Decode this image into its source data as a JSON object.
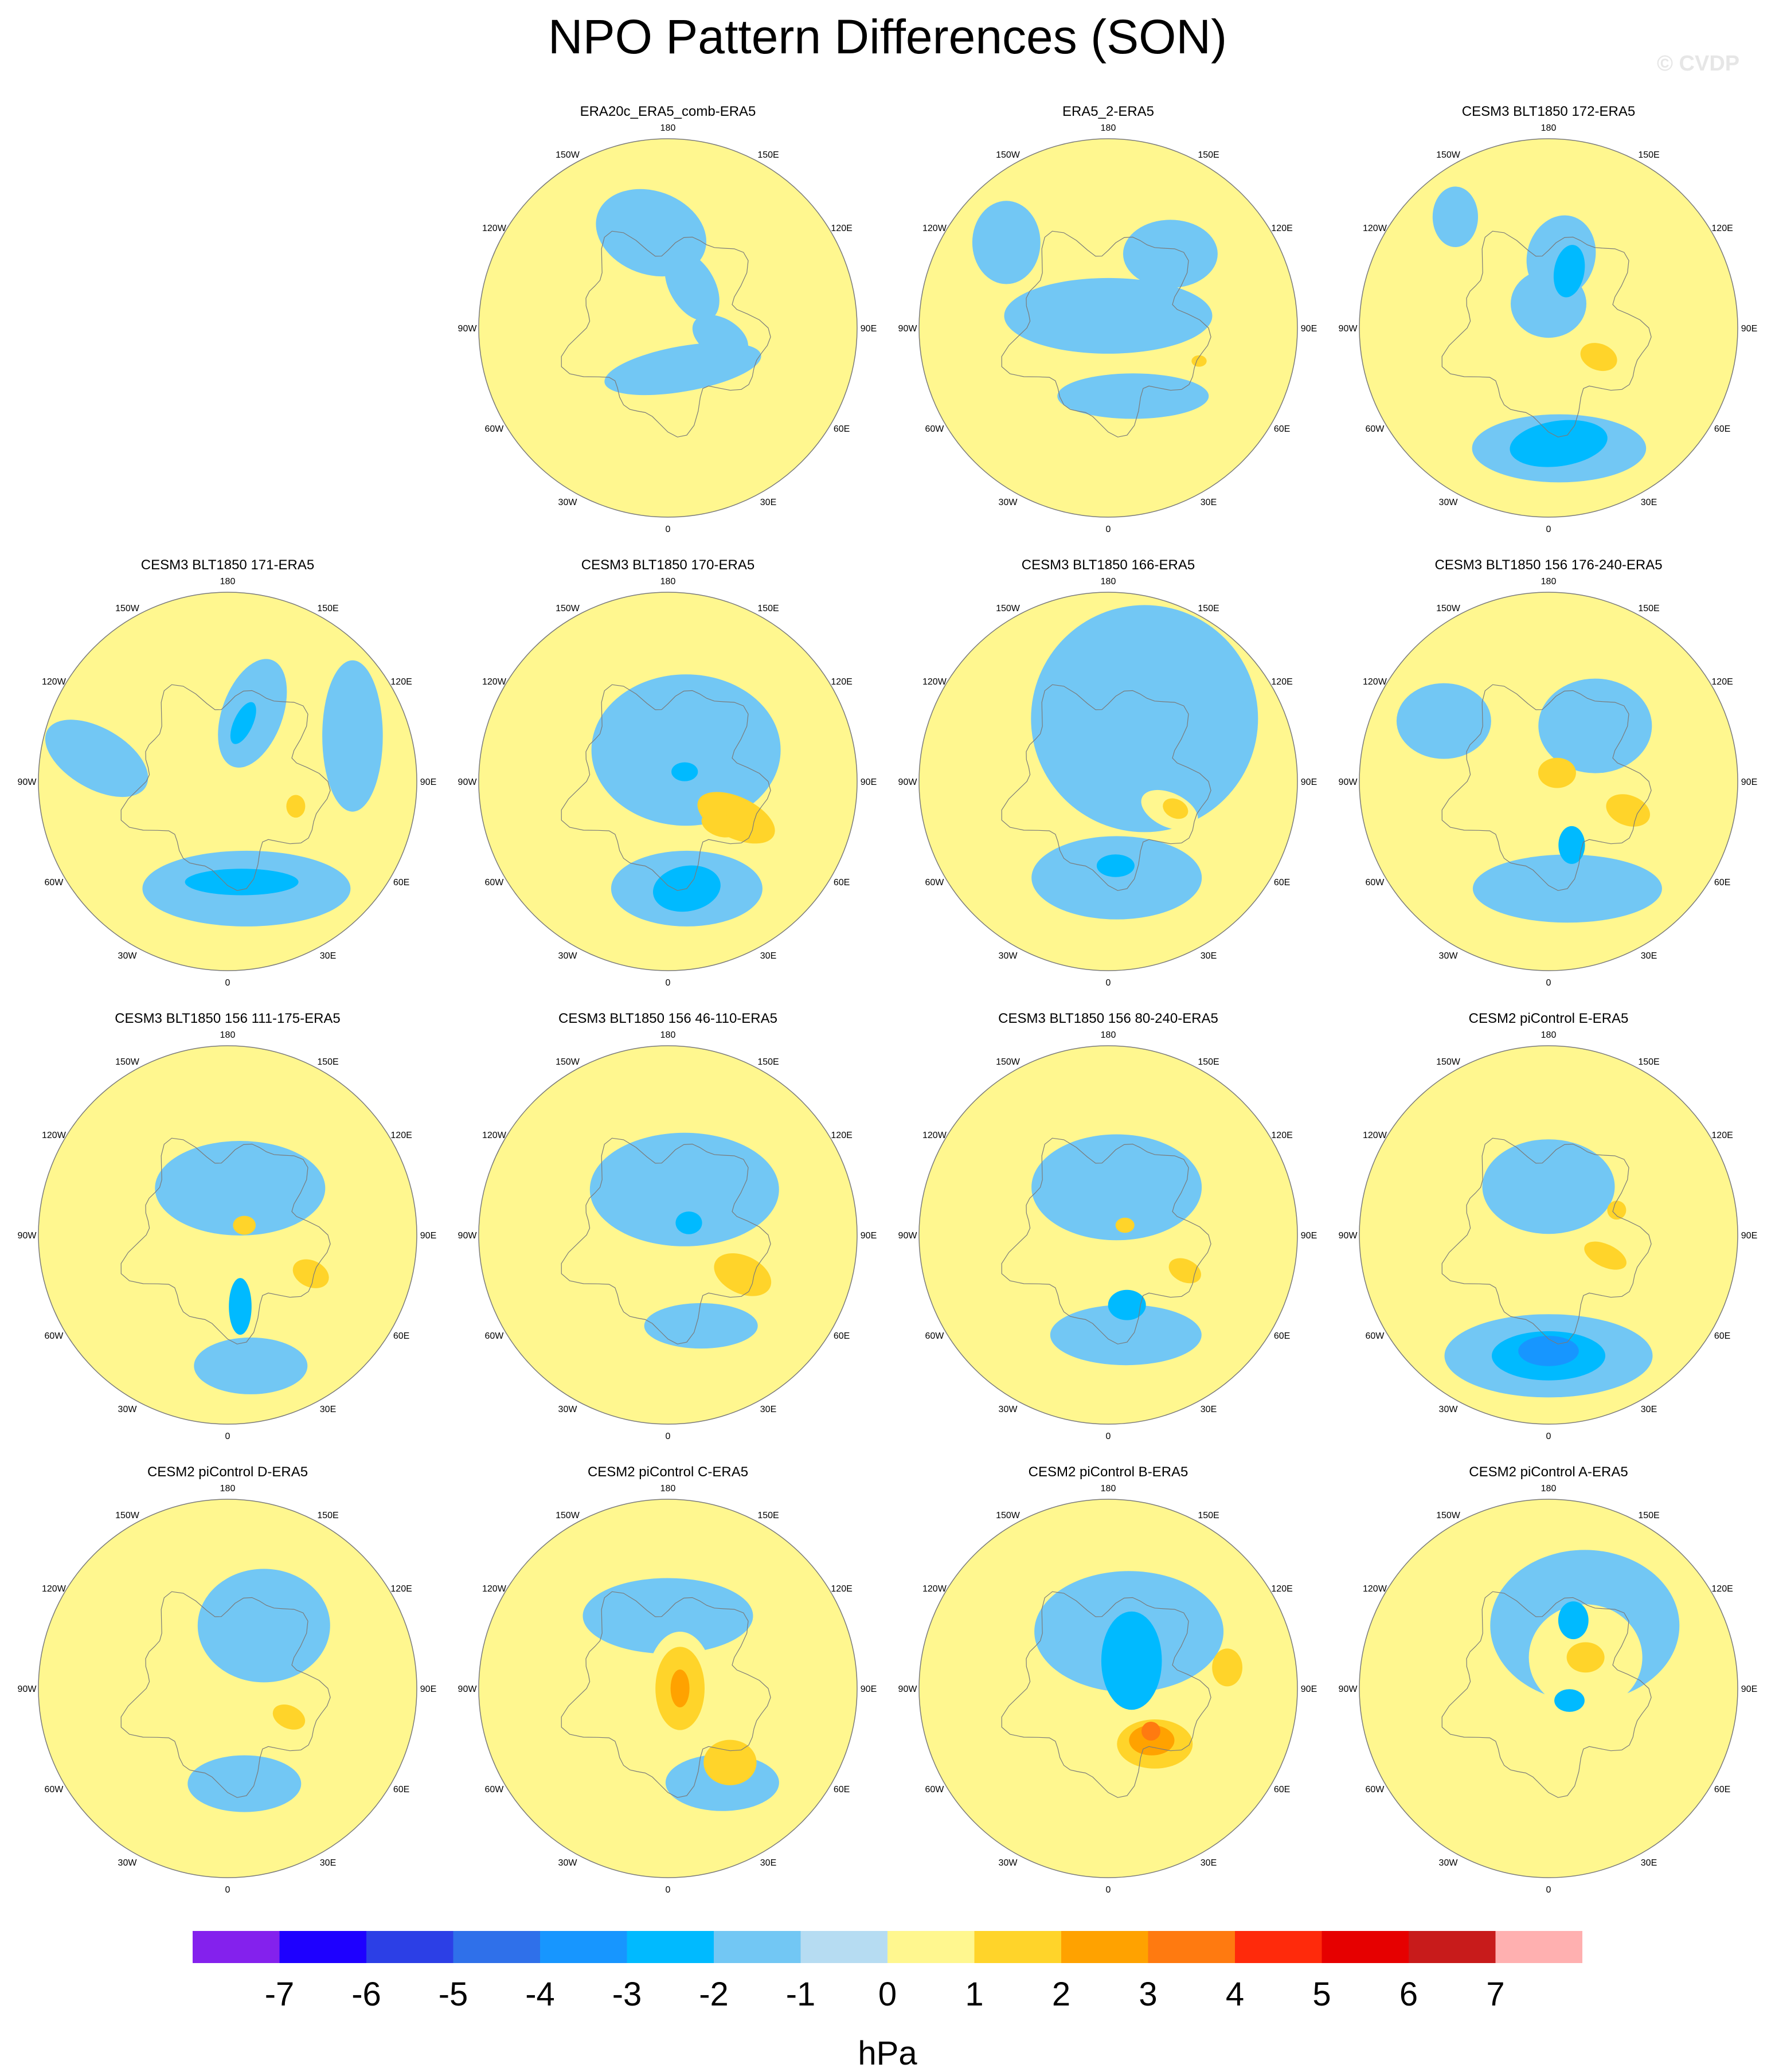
{
  "title": "NPO Pattern Differences (SON)",
  "watermark": "© CVDP",
  "longitude_labels": {
    "n180": "180",
    "n150e": "150E",
    "n120e": "120E",
    "n90e": "90E",
    "n60e": "60E",
    "n30e": "30E",
    "n0": "0",
    "n30w": "30W",
    "n60w": "60W",
    "n90w": "90W",
    "n120w": "120W",
    "n150w": "150W"
  },
  "colors": {
    "ocean_neg1": "#b6dcf2",
    "land_pos1": "#fff78f",
    "coast": "#7a7a7a",
    "outline": "#7a7a7a"
  },
  "chart_data": {
    "type": "heatmap",
    "projection": "north-polar-stereographic",
    "variable_units": "hPa",
    "colorbar": {
      "levels": [
        -7,
        -6,
        -5,
        -4,
        -3,
        -2,
        -1,
        0,
        1,
        2,
        3,
        4,
        5,
        6,
        7
      ],
      "tick_labels": [
        "-7",
        "-6",
        "-5",
        "-4",
        "-3",
        "-2",
        "-1",
        "0",
        "1",
        "2",
        "3",
        "4",
        "5",
        "6",
        "7"
      ],
      "colors": [
        "#8421ed",
        "#1e00ff",
        "#2c3fe6",
        "#2f70ea",
        "#1796ff",
        "#00baff",
        "#72c7f4",
        "#b6dcf2",
        "#fff78f",
        "#ffd42a",
        "#ffa200",
        "#ff7a10",
        "#ff2a0b",
        "#e60000",
        "#c81b1b",
        "#ffb0b0"
      ],
      "units_label": "hPa"
    },
    "panels": [
      {
        "title": "ERA20c_ERA5_comb-ERA5",
        "features": [
          {
            "lon": 160,
            "lat": 72,
            "rx": 0.42,
            "ry": 0.12,
            "rot": -10,
            "level": -1
          },
          {
            "lon": 100,
            "lat": 68,
            "rx": 0.16,
            "ry": 0.1,
            "rot": 30,
            "level": -1
          },
          {
            "lon": -10,
            "lat": 50,
            "rx": 0.3,
            "ry": 0.22,
            "rot": 20,
            "level": -1
          },
          {
            "lon": 30,
            "lat": 70,
            "rx": 0.12,
            "ry": 0.2,
            "rot": -30,
            "level": -1
          }
        ]
      },
      {
        "title": "ERA5_2-ERA5",
        "features": [
          {
            "lon": 0,
            "lat": 85,
            "rx": 0.55,
            "ry": 0.2,
            "rot": 0,
            "level": -1
          },
          {
            "lon": 160,
            "lat": 60,
            "rx": 0.4,
            "ry": 0.12,
            "rot": 0,
            "level": -1
          },
          {
            "lon": 40,
            "lat": 50,
            "rx": 0.25,
            "ry": 0.18,
            "rot": 0,
            "level": -1
          },
          {
            "lon": -50,
            "lat": 35,
            "rx": 0.18,
            "ry": 0.22,
            "rot": 0,
            "level": -1
          },
          {
            "lon": 110,
            "lat": 50,
            "rx": 0.04,
            "ry": 0.03,
            "rot": 0,
            "level": 2
          }
        ]
      },
      {
        "title": "CESM3 BLT1850 172-ERA5",
        "features": [
          {
            "lon": 175,
            "lat": 40,
            "rx": 0.46,
            "ry": 0.18,
            "rot": 0,
            "level": -1
          },
          {
            "lon": 175,
            "lat": 42,
            "rx": 0.26,
            "ry": 0.12,
            "rot": -8,
            "level": -2
          },
          {
            "lon": 0,
            "lat": 80,
            "rx": 0.2,
            "ry": 0.18,
            "rot": 0,
            "level": -1
          },
          {
            "lon": 10,
            "lat": 60,
            "rx": 0.18,
            "ry": 0.22,
            "rot": 15,
            "level": -1
          },
          {
            "lon": 20,
            "lat": 65,
            "rx": 0.08,
            "ry": 0.14,
            "rot": 10,
            "level": -2
          },
          {
            "lon": -40,
            "lat": 30,
            "rx": 0.12,
            "ry": 0.16,
            "rot": 0,
            "level": -1
          },
          {
            "lon": 120,
            "lat": 65,
            "rx": 0.16,
            "ry": 0.12,
            "rot": 20,
            "level": 1
          },
          {
            "lon": 120,
            "lat": 66,
            "rx": 0.1,
            "ry": 0.07,
            "rot": 20,
            "level": 2
          }
        ]
      },
      {
        "title": "CESM3 BLT1850 171-ERA5",
        "features": [
          {
            "lon": 170,
            "lat": 45,
            "rx": 0.55,
            "ry": 0.2,
            "rot": 0,
            "level": -1
          },
          {
            "lon": 172,
            "lat": 48,
            "rx": 0.3,
            "ry": 0.07,
            "rot": 0,
            "level": -2
          },
          {
            "lon": 20,
            "lat": 60,
            "rx": 0.16,
            "ry": 0.3,
            "rot": 20,
            "level": -1
          },
          {
            "lon": 15,
            "lat": 65,
            "rx": 0.05,
            "ry": 0.12,
            "rot": 25,
            "level": -2
          },
          {
            "lon": 70,
            "lat": 35,
            "rx": 0.16,
            "ry": 0.4,
            "rot": 0,
            "level": -1
          },
          {
            "lon": -80,
            "lat": 35,
            "rx": 0.3,
            "ry": 0.16,
            "rot": 30,
            "level": -1
          },
          {
            "lon": 110,
            "lat": 60,
            "rx": 0.05,
            "ry": 0.06,
            "rot": 0,
            "level": 2
          }
        ]
      },
      {
        "title": "CESM3 BLT1850 170-ERA5",
        "features": [
          {
            "lon": 30,
            "lat": 75,
            "rx": 0.5,
            "ry": 0.4,
            "rot": 0,
            "level": -1
          },
          {
            "lon": 170,
            "lat": 45,
            "rx": 0.4,
            "ry": 0.2,
            "rot": 0,
            "level": -1
          },
          {
            "lon": 170,
            "lat": 45,
            "rx": 0.18,
            "ry": 0.12,
            "rot": -10,
            "level": -2
          },
          {
            "lon": 60,
            "lat": 82,
            "rx": 0.07,
            "ry": 0.05,
            "rot": 0,
            "level": -2
          },
          {
            "lon": 118,
            "lat": 58,
            "rx": 0.22,
            "ry": 0.11,
            "rot": 25,
            "level": 2
          },
          {
            "lon": 130,
            "lat": 62,
            "rx": 0.1,
            "ry": 0.06,
            "rot": 20,
            "level": 2
          }
        ]
      },
      {
        "title": "CESM3 BLT1850 166-ERA5",
        "features": [
          {
            "lon": 30,
            "lat": 60,
            "rx": 0.6,
            "ry": 0.6,
            "rot": 0,
            "level": -1
          },
          {
            "lon": 175,
            "lat": 50,
            "rx": 0.45,
            "ry": 0.22,
            "rot": 0,
            "level": -1
          },
          {
            "lon": 175,
            "lat": 55,
            "rx": 0.1,
            "ry": 0.06,
            "rot": 0,
            "level": -2
          },
          {
            "lon": 115,
            "lat": 62,
            "rx": 0.16,
            "ry": 0.09,
            "rot": 25,
            "level": 1
          },
          {
            "lon": 112,
            "lat": 60,
            "rx": 0.07,
            "ry": 0.05,
            "rot": 25,
            "level": 2
          }
        ]
      },
      {
        "title": "CESM3 BLT1850 156 176-240-ERA5",
        "features": [
          {
            "lon": 170,
            "lat": 45,
            "rx": 0.5,
            "ry": 0.18,
            "rot": 0,
            "level": -1
          },
          {
            "lon": 40,
            "lat": 60,
            "rx": 0.3,
            "ry": 0.25,
            "rot": 0,
            "level": -1
          },
          {
            "lon": -60,
            "lat": 40,
            "rx": 0.25,
            "ry": 0.2,
            "rot": 0,
            "level": -1
          },
          {
            "lon": 160,
            "lat": 62,
            "rx": 0.07,
            "ry": 0.1,
            "rot": 0,
            "level": -2
          },
          {
            "lon": 110,
            "lat": 55,
            "rx": 0.22,
            "ry": 0.14,
            "rot": 20,
            "level": 1
          },
          {
            "lon": 110,
            "lat": 55,
            "rx": 0.12,
            "ry": 0.08,
            "rot": 20,
            "level": 2
          },
          {
            "lon": 45,
            "lat": 85,
            "rx": 0.1,
            "ry": 0.08,
            "rot": 0,
            "level": 2
          }
        ]
      },
      {
        "title": "CESM3 BLT1850 156 111-175-ERA5",
        "features": [
          {
            "lon": 15,
            "lat": 70,
            "rx": 0.45,
            "ry": 0.25,
            "rot": 0,
            "level": -1
          },
          {
            "lon": 170,
            "lat": 35,
            "rx": 0.3,
            "ry": 0.15,
            "rot": 0,
            "level": -1
          },
          {
            "lon": 170,
            "lat": 60,
            "rx": 0.06,
            "ry": 0.15,
            "rot": 0,
            "level": -2
          },
          {
            "lon": 115,
            "lat": 52,
            "rx": 0.16,
            "ry": 0.1,
            "rot": 25,
            "level": 1
          },
          {
            "lon": 115,
            "lat": 52,
            "rx": 0.1,
            "ry": 0.07,
            "rot": 25,
            "level": 2
          },
          {
            "lon": 60,
            "lat": 82,
            "rx": 0.06,
            "ry": 0.05,
            "rot": 0,
            "level": 2
          }
        ]
      },
      {
        "title": "CESM3 BLT1850 156 46-110-ERA5",
        "features": [
          {
            "lon": 20,
            "lat": 70,
            "rx": 0.5,
            "ry": 0.3,
            "rot": 0,
            "level": -1
          },
          {
            "lon": 160,
            "lat": 50,
            "rx": 0.3,
            "ry": 0.12,
            "rot": 0,
            "level": -1
          },
          {
            "lon": 60,
            "lat": 80,
            "rx": 0.07,
            "ry": 0.06,
            "rot": 0,
            "level": -2
          },
          {
            "lon": 118,
            "lat": 55,
            "rx": 0.16,
            "ry": 0.1,
            "rot": 25,
            "level": 2
          }
        ]
      },
      {
        "title": "CESM3 BLT1850 156 80-240-ERA5",
        "features": [
          {
            "lon": 10,
            "lat": 70,
            "rx": 0.45,
            "ry": 0.28,
            "rot": 0,
            "level": -1
          },
          {
            "lon": 170,
            "lat": 48,
            "rx": 0.4,
            "ry": 0.16,
            "rot": 0,
            "level": -1
          },
          {
            "lon": 165,
            "lat": 60,
            "rx": 0.1,
            "ry": 0.08,
            "rot": 0,
            "level": -2
          },
          {
            "lon": 115,
            "lat": 55,
            "rx": 0.16,
            "ry": 0.11,
            "rot": 25,
            "level": 1
          },
          {
            "lon": 115,
            "lat": 55,
            "rx": 0.09,
            "ry": 0.06,
            "rot": 25,
            "level": 2
          },
          {
            "lon": 60,
            "lat": 82,
            "rx": 0.05,
            "ry": 0.04,
            "rot": 0,
            "level": 2
          }
        ]
      },
      {
        "title": "CESM2 piControl E-ERA5",
        "features": [
          {
            "lon": 180,
            "lat": 40,
            "rx": 0.55,
            "ry": 0.22,
            "rot": 0,
            "level": -1
          },
          {
            "lon": 180,
            "lat": 40,
            "rx": 0.3,
            "ry": 0.13,
            "rot": 0,
            "level": -2
          },
          {
            "lon": 180,
            "lat": 42,
            "rx": 0.16,
            "ry": 0.08,
            "rot": 0,
            "level": -3
          },
          {
            "lon": 0,
            "lat": 70,
            "rx": 0.35,
            "ry": 0.25,
            "rot": 0,
            "level": -1
          },
          {
            "lon": 110,
            "lat": 65,
            "rx": 0.12,
            "ry": 0.06,
            "rot": 25,
            "level": 2
          },
          {
            "lon": 70,
            "lat": 60,
            "rx": 0.05,
            "ry": 0.05,
            "rot": 0,
            "level": 2
          }
        ]
      },
      {
        "title": "CESM2 piControl D-ERA5",
        "features": [
          {
            "lon": 30,
            "lat": 60,
            "rx": 0.35,
            "ry": 0.3,
            "rot": 0,
            "level": -1
          },
          {
            "lon": 170,
            "lat": 50,
            "rx": 0.3,
            "ry": 0.15,
            "rot": 0,
            "level": -1
          },
          {
            "lon": 115,
            "lat": 62,
            "rx": 0.09,
            "ry": 0.06,
            "rot": 25,
            "level": 2
          }
        ]
      },
      {
        "title": "CESM2 piControl C-ERA5",
        "features": [
          {
            "lon": 0,
            "lat": 60,
            "rx": 0.45,
            "ry": 0.2,
            "rot": 0,
            "level": -1
          },
          {
            "lon": 150,
            "lat": 45,
            "rx": 0.3,
            "ry": 0.15,
            "rot": 0,
            "level": -1
          },
          {
            "lon": 140,
            "lat": 50,
            "rx": 0.14,
            "ry": 0.12,
            "rot": 0,
            "level": 2
          },
          {
            "lon": 90,
            "lat": 85,
            "rx": 0.18,
            "ry": 0.3,
            "rot": 0,
            "level": 1
          },
          {
            "lon": 90,
            "lat": 85,
            "rx": 0.13,
            "ry": 0.22,
            "rot": 0,
            "level": 2
          },
          {
            "lon": 90,
            "lat": 85,
            "rx": 0.05,
            "ry": 0.1,
            "rot": 0,
            "level": 3
          }
        ]
      },
      {
        "title": "CESM2 piControl B-ERA5",
        "features": [
          {
            "lon": 20,
            "lat": 65,
            "rx": 0.5,
            "ry": 0.32,
            "rot": 0,
            "level": -1
          },
          {
            "lon": 40,
            "lat": 75,
            "rx": 0.16,
            "ry": 0.26,
            "rot": 0,
            "level": -2
          },
          {
            "lon": 140,
            "lat": 60,
            "rx": 0.3,
            "ry": 0.18,
            "rot": 0,
            "level": 1
          },
          {
            "lon": 140,
            "lat": 60,
            "rx": 0.2,
            "ry": 0.13,
            "rot": 0,
            "level": 2
          },
          {
            "lon": 140,
            "lat": 62,
            "rx": 0.12,
            "ry": 0.08,
            "rot": 0,
            "level": 3
          },
          {
            "lon": 135,
            "lat": 65,
            "rx": 0.05,
            "ry": 0.05,
            "rot": 0,
            "level": 4
          },
          {
            "lon": 80,
            "lat": 40,
            "rx": 0.08,
            "ry": 0.1,
            "rot": 0,
            "level": 2
          }
        ]
      },
      {
        "title": "CESM2 piControl A-ERA5",
        "features": [
          {
            "lon": 30,
            "lat": 60,
            "rx": 0.5,
            "ry": 0.4,
            "rot": 0,
            "level": -1
          },
          {
            "lon": 50,
            "lat": 70,
            "rx": 0.3,
            "ry": 0.28,
            "rot": 0,
            "level": 1
          },
          {
            "lon": 50,
            "lat": 70,
            "rx": 0.1,
            "ry": 0.08,
            "rot": 0,
            "level": 2
          },
          {
            "lon": 120,
            "lat": 80,
            "rx": 0.08,
            "ry": 0.06,
            "rot": 0,
            "level": -2
          },
          {
            "lon": 20,
            "lat": 60,
            "rx": 0.08,
            "ry": 0.1,
            "rot": 0,
            "level": -2
          }
        ]
      }
    ]
  }
}
